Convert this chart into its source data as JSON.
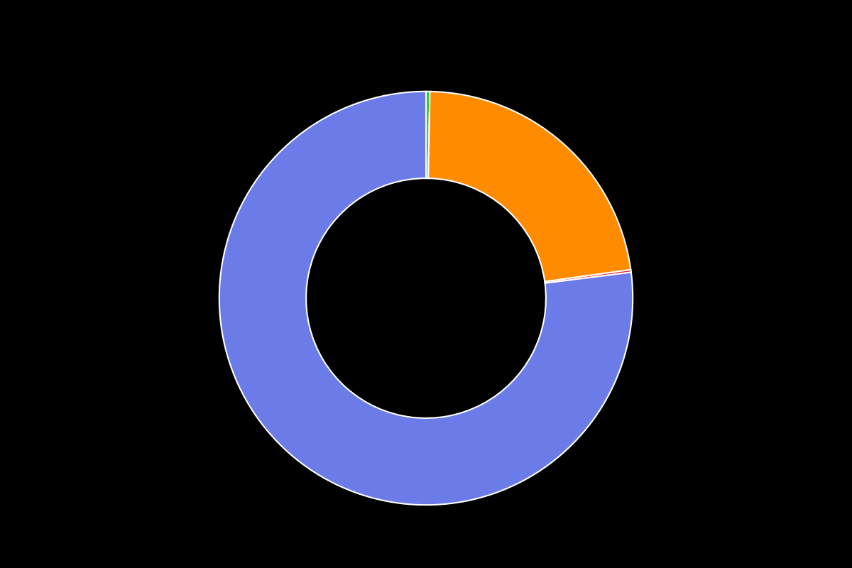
{
  "values": [
    0.3,
    22.5,
    0.2,
    77.0
  ],
  "colors": [
    "#2ecc40",
    "#ff8c00",
    "#e02020",
    "#6b7be8"
  ],
  "legend_colors": [
    "#2ecc40",
    "#ff8c00",
    "#e02020",
    "#6b7be8"
  ],
  "background_color": "#000000",
  "wedge_edge_color": "#ffffff",
  "wedge_linewidth": 1.5,
  "donut_width": 0.42,
  "startangle": 90
}
